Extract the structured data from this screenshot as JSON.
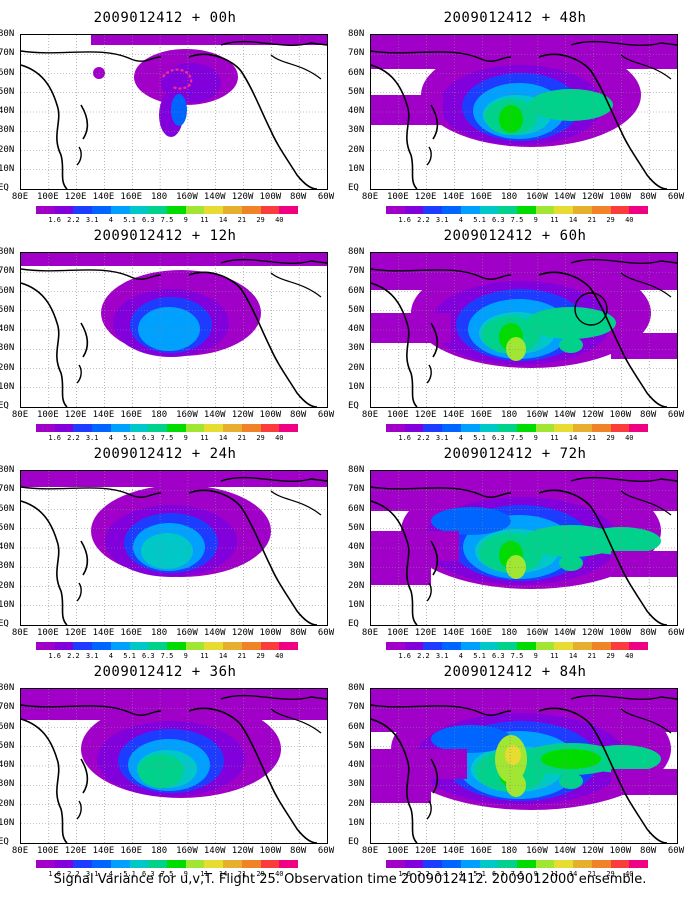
{
  "caption": "Signal Variance for u,v,T. Flight 25. Observation time 2009012412. 2009012000 ensemble.",
  "lat_labels": [
    "80N",
    "70N",
    "60N",
    "50N",
    "40N",
    "30N",
    "20N",
    "10N",
    "EQ"
  ],
  "lon_labels": [
    "80E",
    "100E",
    "120E",
    "140E",
    "160E",
    "180",
    "160W",
    "140W",
    "120W",
    "100W",
    "80W",
    "60W"
  ],
  "colorbar": {
    "levels": [
      "1.6",
      "2.2",
      "3.1",
      "4",
      "5.1",
      "6.3",
      "7.5",
      "9",
      "11",
      "14",
      "21",
      "29",
      "40"
    ],
    "colors": [
      "#a000c8",
      "#8200dc",
      "#1e3cff",
      "#0064ff",
      "#00a0ff",
      "#00c8c8",
      "#00d28c",
      "#00dc00",
      "#a0e632",
      "#e6dc32",
      "#e6af2d",
      "#f08228",
      "#fa3c3c",
      "#f00082"
    ]
  },
  "panels": [
    {
      "title": "2009012412 + 00h",
      "stage": 0
    },
    {
      "title": "2009012412 + 48h",
      "stage": 4
    },
    {
      "title": "2009012412 + 12h",
      "stage": 1
    },
    {
      "title": "2009012412 + 60h",
      "stage": 5
    },
    {
      "title": "2009012412 + 24h",
      "stage": 2
    },
    {
      "title": "2009012412 + 72h",
      "stage": 6
    },
    {
      "title": "2009012412 + 36h",
      "stage": 3
    },
    {
      "title": "2009012412 + 84h",
      "stage": 7
    }
  ]
}
